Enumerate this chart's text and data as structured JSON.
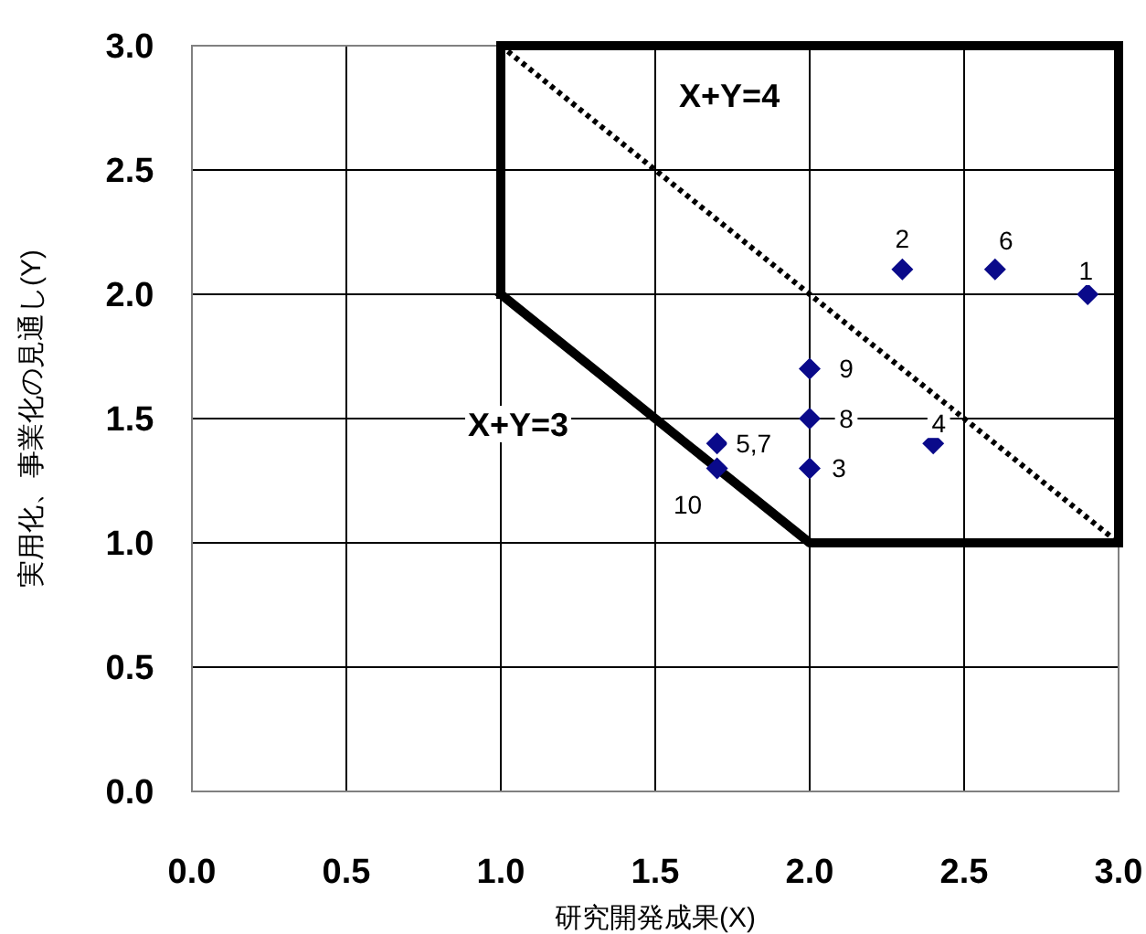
{
  "chart_data": {
    "type": "scatter",
    "xlabel": "研究開発成果(X)",
    "ylabel": "実用化、事業化の見通し(Y)",
    "xlim": [
      0,
      3
    ],
    "ylim": [
      0,
      3
    ],
    "xticks": [
      {
        "value": 0,
        "label": "0.0"
      },
      {
        "value": 0.5,
        "label": "0.5"
      },
      {
        "value": 1,
        "label": "1.0"
      },
      {
        "value": 1.5,
        "label": "1.5"
      },
      {
        "value": 2,
        "label": "2.0"
      },
      {
        "value": 2.5,
        "label": "2.5"
      },
      {
        "value": 3,
        "label": "3.0"
      }
    ],
    "yticks": [
      {
        "value": 0,
        "label": "0.0"
      },
      {
        "value": 0.5,
        "label": "0.5"
      },
      {
        "value": 1,
        "label": "1.0"
      },
      {
        "value": 1.5,
        "label": "1.5"
      },
      {
        "value": 2,
        "label": "2.0"
      },
      {
        "value": 2.5,
        "label": "2.5"
      },
      {
        "value": 3,
        "label": "3.0"
      }
    ],
    "grid": true,
    "legend": false,
    "series": [
      {
        "type": "line",
        "color": "#000000",
        "line_style": "solid",
        "marker": "none",
        "x": [
          1,
          2,
          3
        ],
        "values": [
          2,
          1,
          1
        ]
      },
      {
        "type": "line",
        "color": "#000000",
        "line_style": "solid",
        "marker": "none",
        "x": [
          1,
          3
        ],
        "values": [
          3,
          3
        ]
      },
      {
        "type": "line",
        "color": "#000000",
        "line_style": "solid",
        "marker": "none",
        "x": [
          1,
          1
        ],
        "values": [
          2,
          3
        ]
      },
      {
        "type": "line",
        "color": "#000000",
        "line_style": "solid",
        "marker": "none",
        "x": [
          3,
          3
        ],
        "values": [
          1,
          3
        ]
      },
      {
        "type": "line",
        "color": "#000000",
        "line_style": "dotted",
        "marker": "none",
        "x": [
          1,
          3
        ],
        "values": [
          3,
          1
        ]
      },
      {
        "color": "#0a0a8a",
        "marker": "diamond",
        "x": [
          2.9,
          2.3,
          2.0,
          2.4,
          1.7,
          2.6,
          2.0,
          2.0,
          1.7
        ],
        "values": [
          2.0,
          2.1,
          1.3,
          1.4,
          1.4,
          2.1,
          1.5,
          1.7,
          1.3
        ]
      }
    ],
    "annotations": [
      "X+Y=4",
      {
        "text": "X+Y=3",
        "x": 1.5,
        "y": 1.5
      },
      {
        "text": "1",
        "x": 2.9,
        "y": 2.0
      },
      {
        "text": "2",
        "x": 2.3,
        "y": 2.1
      },
      {
        "text": "3",
        "x": 2.0,
        "y": 1.3
      },
      {
        "text": "4",
        "x": 2.4,
        "y": 1.4
      },
      {
        "text": "5,7",
        "x": 1.7,
        "y": 1.4
      },
      {
        "text": "6",
        "x": 2.6,
        "y": 2.1
      },
      {
        "text": "8",
        "x": 2.0,
        "y": 1.5
      },
      {
        "text": "9",
        "x": 2.0,
        "y": 1.7
      },
      {
        "text": "10",
        "x": 1.7,
        "y": 1.3
      }
    ]
  }
}
